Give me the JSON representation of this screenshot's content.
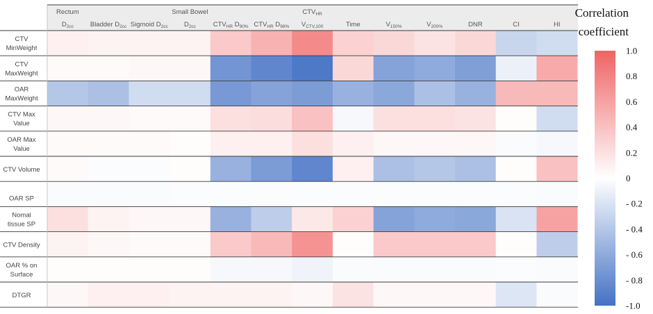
{
  "chart_data": {
    "type": "heatmap",
    "colorbar_title": [
      "Correlation",
      "coefficient"
    ],
    "colorbar_range": [
      -1.0,
      1.0
    ],
    "colorbar_ticks": [
      "1.0",
      "0.8",
      "0.6",
      "0.4",
      "0.2",
      "0",
      "- 0.2",
      "- 0.4",
      "- 0.6",
      "- 0.8",
      "-1.0"
    ],
    "colors": {
      "positive": "#f06464",
      "negative": "#4472c4",
      "zero": "#ffffff"
    },
    "group_headers": [
      "Rectum",
      "Small Bowel",
      "CTV_HR"
    ],
    "columns": [
      {
        "main": "D",
        "sub": "2cc"
      },
      {
        "main": "Bladder D",
        "sub": "2cc"
      },
      {
        "main": "Sigmoid D",
        "sub": "2cc"
      },
      {
        "main": "D",
        "sub": "2cc"
      },
      {
        "main": "CTV",
        "sub": "HR",
        "main2": " D",
        "sub2": "90%"
      },
      {
        "main": "CTV",
        "sub": "HR",
        "main2": " D",
        "sub2": "98%"
      },
      {
        "main": "V",
        "sub": "CTV,100"
      },
      {
        "main": "Time",
        "sub": ""
      },
      {
        "main": "V",
        "sub": "150%"
      },
      {
        "main": "V",
        "sub": "200%"
      },
      {
        "main": "DNR",
        "sub": ""
      },
      {
        "main": "CI",
        "sub": ""
      },
      {
        "main": "HI",
        "sub": ""
      }
    ],
    "rows": [
      [
        "CTV",
        "MinWeight"
      ],
      [
        "CTV",
        "MaxWeight"
      ],
      [
        "OAR",
        "MaxWeight"
      ],
      [
        "CTV Max",
        "Value"
      ],
      [
        "OAR Max",
        "Value"
      ],
      [
        "CTV Volume"
      ],
      [
        "OAR SP"
      ],
      [
        "Nomal",
        "tissue SP"
      ],
      [
        "CTV Density"
      ],
      [
        "OAR % on",
        "Surface"
      ],
      [
        "DTGR"
      ]
    ],
    "values": [
      [
        0.1,
        0.08,
        0.08,
        0.08,
        0.35,
        0.5,
        0.75,
        0.3,
        0.25,
        0.18,
        0.25,
        -0.3,
        -0.25
      ],
      [
        0.03,
        0.03,
        0.05,
        0.05,
        -0.75,
        -0.85,
        -0.95,
        0.25,
        -0.65,
        -0.6,
        -0.68,
        -0.1,
        0.55
      ],
      [
        -0.4,
        -0.45,
        -0.25,
        -0.25,
        -0.72,
        -0.65,
        -0.7,
        -0.55,
        -0.62,
        -0.45,
        -0.55,
        0.45,
        0.45
      ],
      [
        0.05,
        0.05,
        0.03,
        0.03,
        0.2,
        0.22,
        0.4,
        -0.05,
        0.2,
        0.2,
        0.18,
        0.02,
        -0.25
      ],
      [
        0.03,
        0.03,
        0.03,
        0.02,
        0.1,
        0.1,
        0.2,
        0.1,
        0.05,
        0.05,
        0.05,
        -0.03,
        -0.05
      ],
      [
        0.03,
        -0.02,
        -0.02,
        0.02,
        -0.55,
        -0.7,
        -0.85,
        0.1,
        -0.45,
        -0.4,
        -0.45,
        0.02,
        0.4
      ],
      [
        -0.03,
        -0.03,
        -0.03,
        -0.02,
        -0.02,
        -0.02,
        -0.02,
        -0.02,
        -0.02,
        -0.02,
        -0.02,
        -0.02,
        -0.03
      ],
      [
        0.2,
        0.08,
        0.05,
        0.05,
        -0.55,
        -0.35,
        0.15,
        0.3,
        -0.65,
        -0.6,
        -0.62,
        -0.2,
        0.6
      ],
      [
        0.08,
        0.05,
        0.03,
        0.03,
        0.35,
        0.45,
        0.7,
        0.02,
        0.35,
        0.35,
        0.35,
        0.02,
        -0.35
      ],
      [
        0.02,
        0.02,
        0.02,
        0.02,
        -0.05,
        -0.05,
        -0.08,
        -0.03,
        -0.03,
        -0.03,
        -0.03,
        -0.02,
        -0.03
      ],
      [
        0.05,
        0.1,
        0.1,
        0.08,
        0.08,
        0.08,
        0.05,
        0.18,
        0.05,
        0.05,
        0.05,
        -0.18,
        -0.03
      ]
    ]
  }
}
